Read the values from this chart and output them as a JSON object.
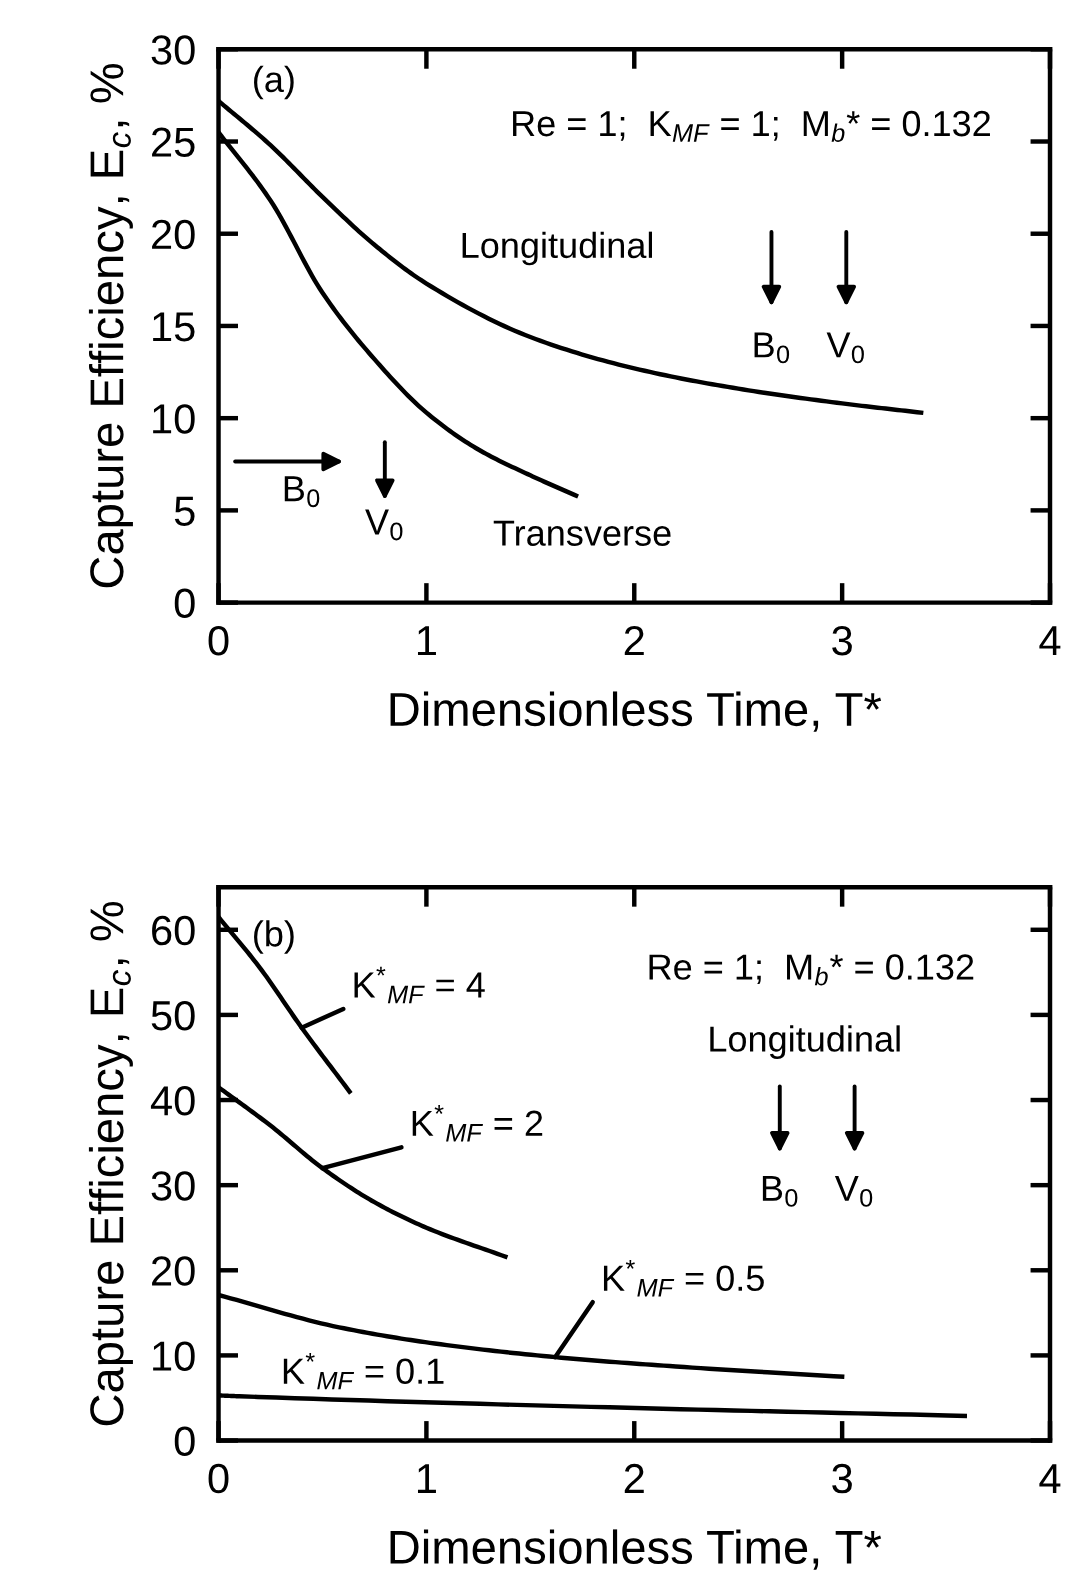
{
  "chart_data": [
    {
      "type": "line",
      "xlabel": "Dimensionless Time, T*",
      "ylabel": "Capture Efficiency, E$_{c}$, %",
      "xlim": [
        0,
        4
      ],
      "ylim": [
        0,
        30
      ],
      "xticks": [
        0,
        1,
        2,
        3,
        4
      ],
      "yticks": [
        0,
        5,
        10,
        15,
        20,
        25,
        30
      ],
      "grid": false,
      "legend": false,
      "marker": "none",
      "line_style": "solid",
      "annotations": [
        "(a)",
        "Re = 1;  K$_{MF}$ = 1;  M$_{b}$* = 0.132",
        "B$_{0}$",
        "V$_{0}$",
        "B$_{0}$",
        "V$_{0}$"
      ],
      "series": [
        {
          "name": "Longitudinal",
          "color": "#000000",
          "x": [
            0,
            0.25,
            0.5,
            0.75,
            1,
            1.5,
            2,
            2.5,
            3,
            3.38
          ],
          "values": [
            27.2,
            24.8,
            22.0,
            19.4,
            17.3,
            14.4,
            12.7,
            11.6,
            10.8,
            10.3
          ]
        },
        {
          "name": "Transverse",
          "color": "#000000",
          "x": [
            0,
            0.25,
            0.5,
            0.75,
            1,
            1.25,
            1.5,
            1.72
          ],
          "values": [
            25.5,
            21.8,
            16.8,
            13.2,
            10.3,
            8.3,
            6.9,
            5.8
          ]
        }
      ]
    },
    {
      "type": "line",
      "xlabel": "Dimensionless Time, T*",
      "ylabel": "Capture Efficiency, E$_{c}$, %",
      "xlim": [
        0,
        4
      ],
      "ylim": [
        0,
        65
      ],
      "xticks": [
        0,
        1,
        2,
        3,
        4
      ],
      "yticks": [
        0,
        10,
        20,
        30,
        40,
        50,
        60
      ],
      "grid": false,
      "legend": false,
      "marker": "none",
      "line_style": "solid",
      "annotations": [
        "(b)",
        "Re = 1;  M$_{b}$* = 0.132",
        "Longitudinal",
        "B$_{0}$",
        "V$_{0}$"
      ],
      "series": [
        {
          "name": "K$^{*}$$_{MF}$ = 4",
          "color": "#000000",
          "x": [
            0,
            0.2,
            0.4,
            0.63
          ],
          "values": [
            61.5,
            55.5,
            48.5,
            41.0
          ]
        },
        {
          "name": "K$^{*}$$_{MF}$ = 2",
          "color": "#000000",
          "x": [
            0,
            0.25,
            0.5,
            0.75,
            1,
            1.38
          ],
          "values": [
            41.5,
            37.0,
            32.0,
            28.0,
            25.0,
            21.6
          ]
        },
        {
          "name": "K$^{*}$$_{MF}$ = 0.5",
          "color": "#000000",
          "x": [
            0,
            0.58,
            1.04,
            1.62,
            2.2,
            3.0
          ],
          "values": [
            17.1,
            13.3,
            11.4,
            9.8,
            8.7,
            7.5
          ]
        },
        {
          "name": "K$^{*}$$_{MF}$ = 0.1",
          "color": "#000000",
          "x": [
            0,
            0.1,
            1.88,
            3.59
          ],
          "values": [
            5.3,
            5.2,
            3.9,
            2.9
          ]
        }
      ]
    }
  ]
}
